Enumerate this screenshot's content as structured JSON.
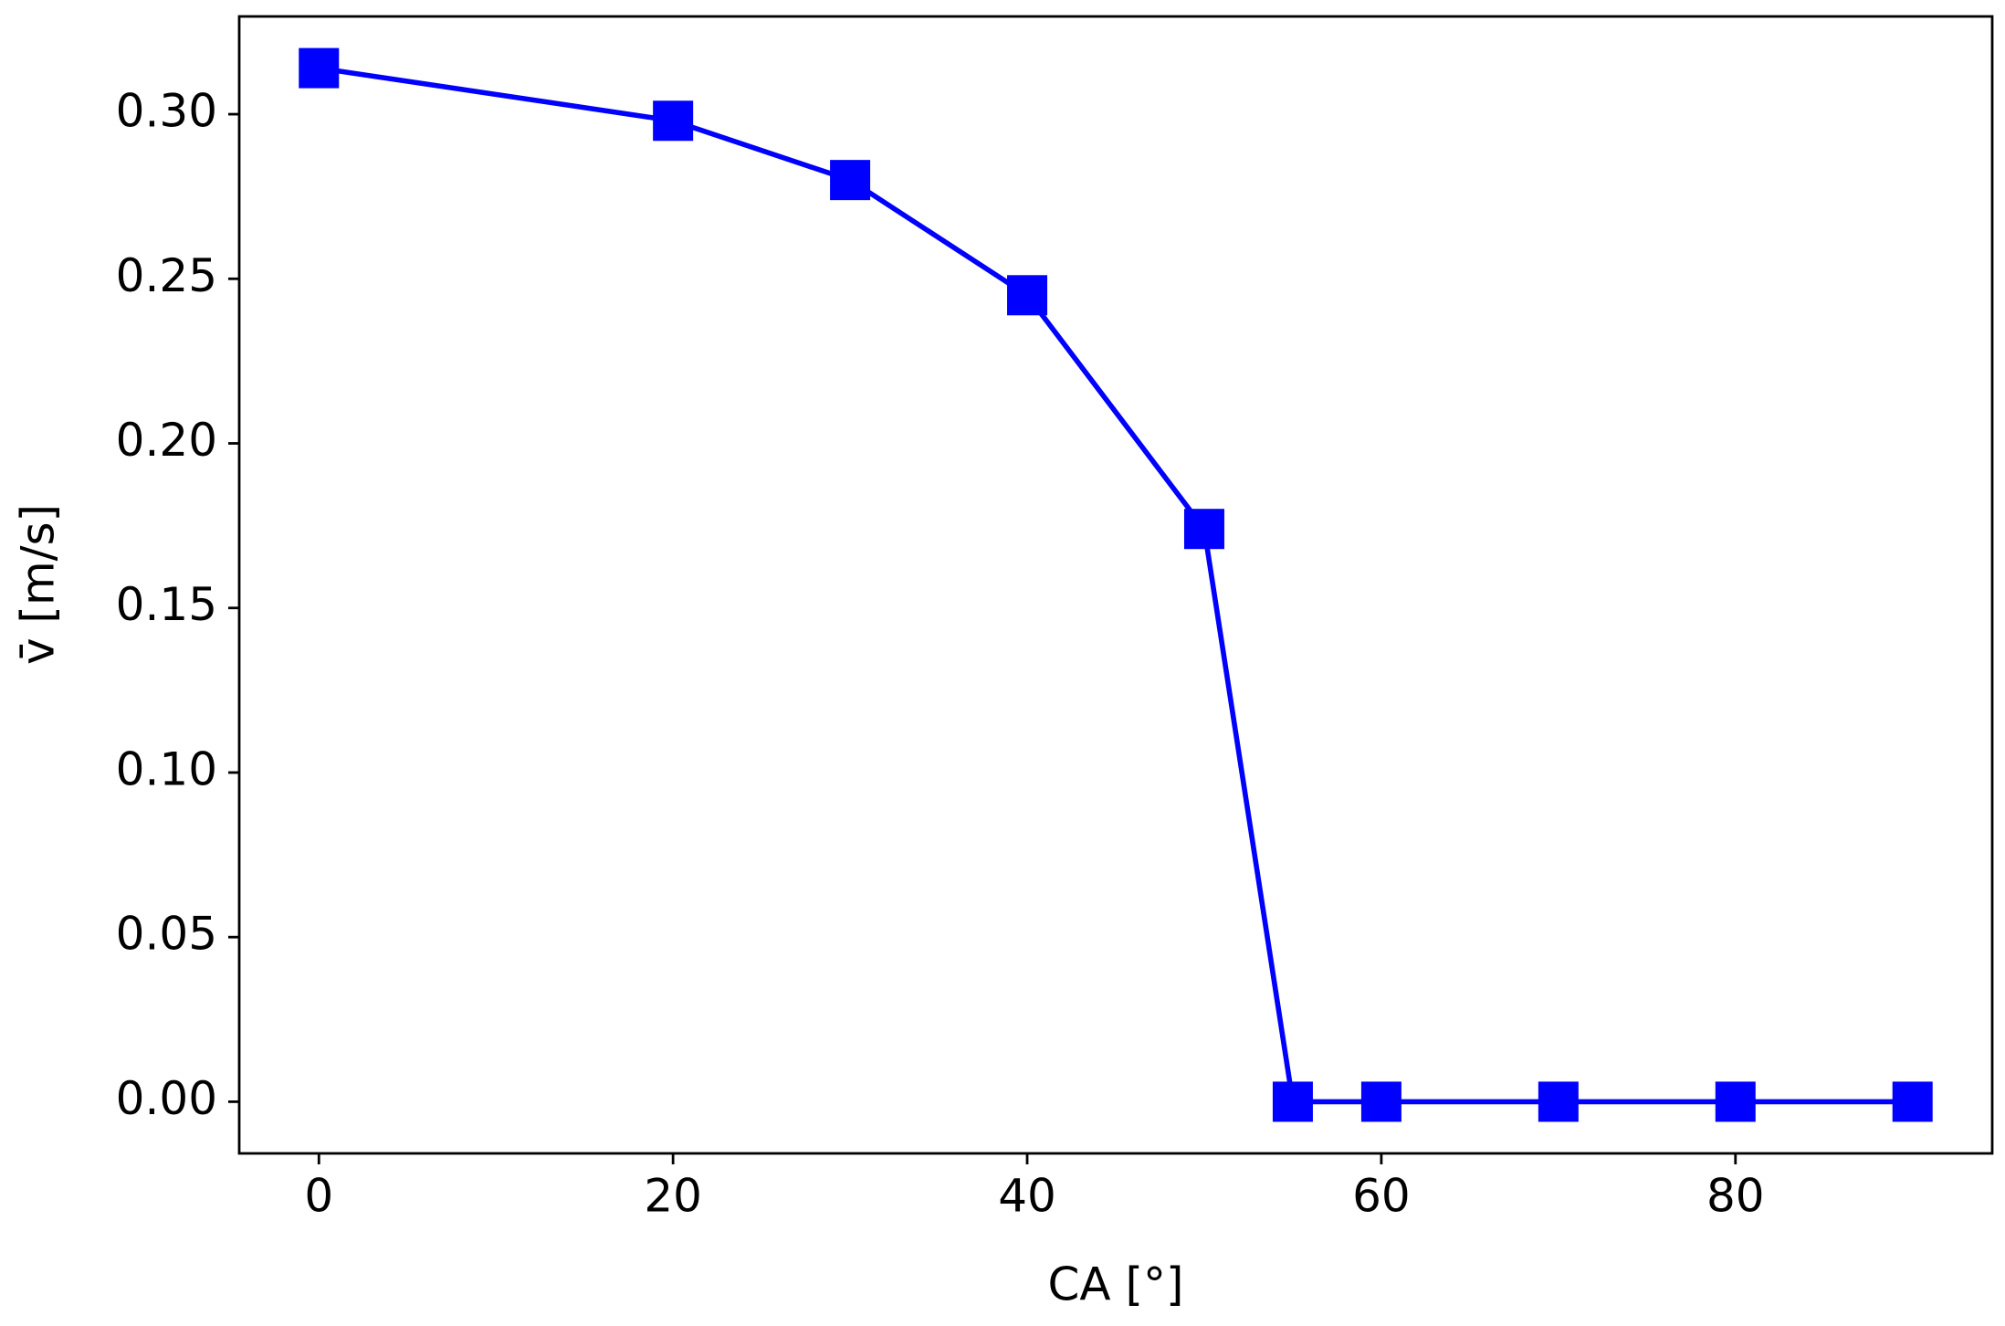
{
  "chart_data": {
    "type": "line",
    "xlabel": "CA [°]",
    "ylabel": "v̄ [m/s]",
    "x": [
      0,
      20,
      30,
      40,
      50,
      55,
      60,
      70,
      80,
      90
    ],
    "values": [
      0.314,
      0.298,
      0.28,
      0.245,
      0.174,
      0,
      0,
      0,
      0,
      0
    ],
    "color": "#0000ff",
    "marker": "square",
    "xlim": [
      -4.5,
      94.5
    ],
    "xticks": [
      0,
      20,
      40,
      60,
      80
    ],
    "ylim": [
      -0.0157,
      0.3297
    ],
    "yticks": [
      {
        "value": 0,
        "label": "0.00"
      },
      {
        "value": 0.05,
        "label": "0.05"
      },
      {
        "value": 0.1,
        "label": "0.10"
      },
      {
        "value": 0.15,
        "label": "0.15"
      },
      {
        "value": 0.2,
        "label": "0.20"
      },
      {
        "value": 0.25,
        "label": "0.25"
      },
      {
        "value": 0.3,
        "label": "0.30"
      }
    ],
    "grid": false
  }
}
